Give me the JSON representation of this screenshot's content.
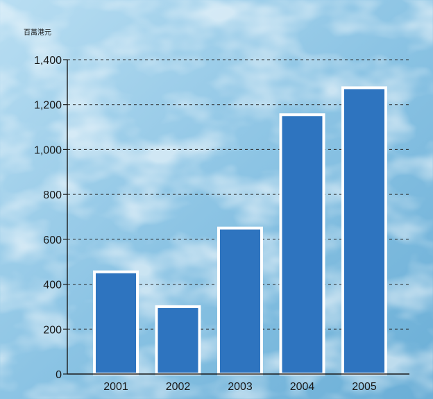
{
  "colors": {
    "water_light": "#b9def2",
    "water_mid": "#8cc4e4",
    "water_dark": "#6aaed6",
    "bar_fill": "#2e74bf",
    "bar_stroke": "#ffffff",
    "axis": "#1a1a1a",
    "grid": "#2a2a2a"
  },
  "chart_data": {
    "type": "bar",
    "ylabel": "百萬港元",
    "categories": [
      "2001",
      "2002",
      "2003",
      "2004",
      "2005"
    ],
    "values": [
      455,
      300,
      650,
      1155,
      1275
    ],
    "ylim": [
      0,
      1400
    ],
    "yticks": [
      0,
      200,
      400,
      600,
      800,
      1000,
      1200,
      1400
    ],
    "ytick_labels": [
      "0",
      "200",
      "400",
      "600",
      "800",
      "1,000",
      "1,200",
      "1,400"
    ],
    "grid": "horizontal dashed",
    "legend": "none"
  }
}
